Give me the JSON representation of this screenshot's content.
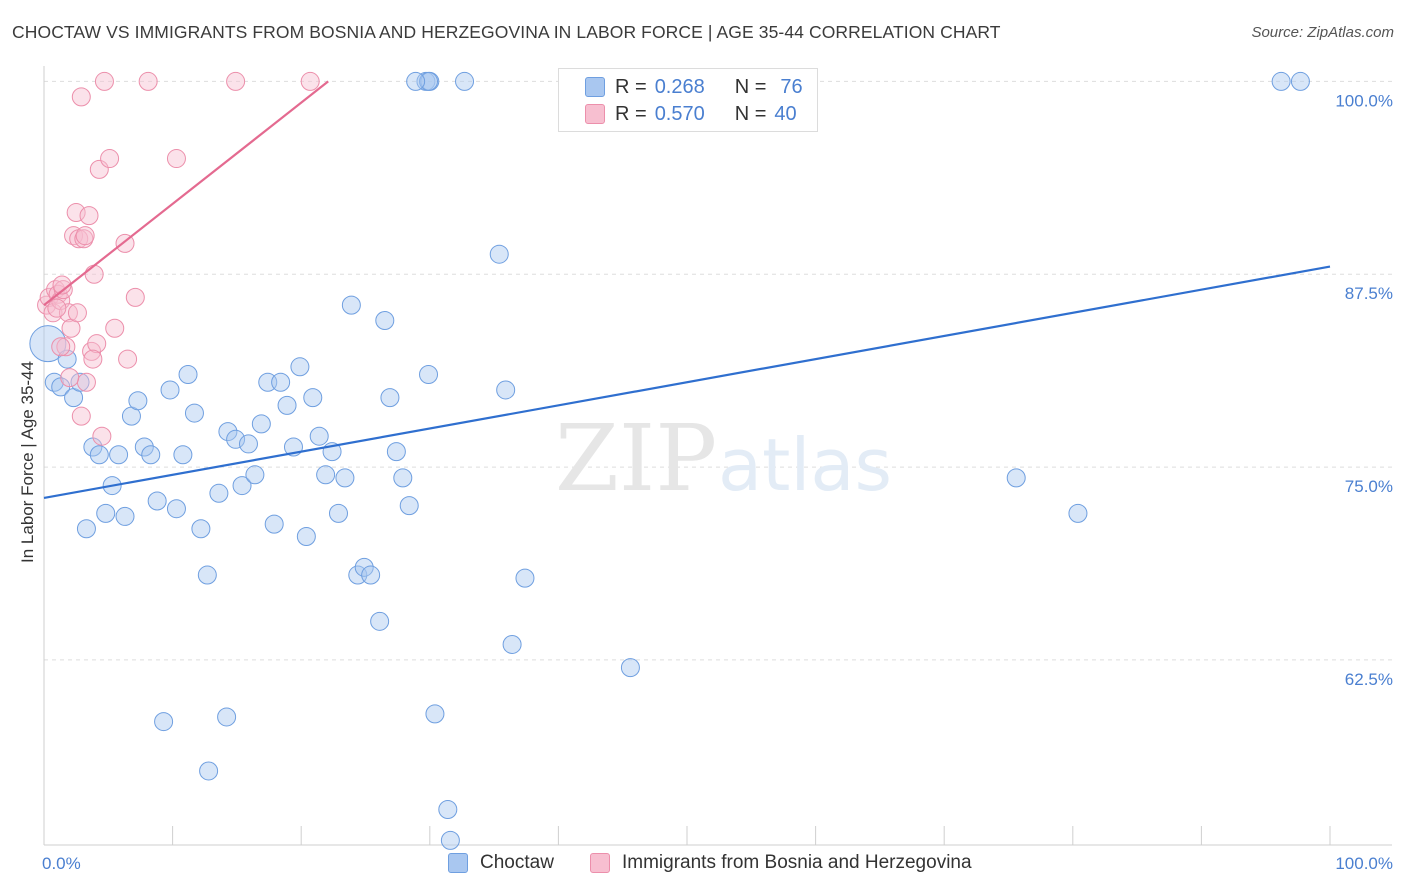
{
  "title": "CHOCTAW VS IMMIGRANTS FROM BOSNIA AND HERZEGOVINA IN LABOR FORCE | AGE 35-44 CORRELATION CHART",
  "source": "Source: ZipAtlas.com",
  "legend": {
    "r_label": "R =",
    "n_label": "N =",
    "series": [
      {
        "name": "Choctaw",
        "r": "0.268",
        "n": "76",
        "color": "#a9c7f0",
        "stroke": "#6f9fe0"
      },
      {
        "name": "Immigrants from Bosnia and Herzegovina",
        "r": "0.570",
        "n": "40",
        "color": "#f7bfd0",
        "stroke": "#ec8fab"
      }
    ]
  },
  "watermark": {
    "zip": "ZIP",
    "atlas": "atlas"
  },
  "chart_data": {
    "type": "scatter",
    "title": "CHOCTAW VS IMMIGRANTS FROM BOSNIA AND HERZEGOVINA IN LABOR FORCE | AGE 35-44 CORRELATION CHART",
    "xlabel": "",
    "ylabel": "In Labor Force | Age 35-44",
    "xlim": [
      0,
      100
    ],
    "ylim": [
      50.5,
      101
    ],
    "x_tick_labels": [
      "0.0%",
      "100.0%"
    ],
    "y_ticks": [
      62.5,
      75.0,
      87.5,
      100.0
    ],
    "y_tick_labels": [
      "62.5%",
      "75.0%",
      "87.5%",
      "100.0%"
    ],
    "grid": true,
    "series": [
      {
        "name": "Choctaw",
        "color": "#6f9fe0",
        "line_color": "#2f6fcf",
        "trend": {
          "x": [
            0,
            100
          ],
          "y": [
            73.0,
            88.0
          ]
        },
        "points": [
          [
            0.3,
            83.0
          ],
          [
            0.8,
            80.5
          ],
          [
            1.3,
            80.2
          ],
          [
            1.8,
            82.0
          ],
          [
            2.3,
            79.5
          ],
          [
            2.8,
            80.5
          ],
          [
            3.3,
            71.0
          ],
          [
            3.8,
            76.3
          ],
          [
            4.3,
            75.8
          ],
          [
            4.8,
            72.0
          ],
          [
            5.3,
            73.8
          ],
          [
            5.8,
            75.8
          ],
          [
            6.3,
            71.8
          ],
          [
            6.8,
            78.3
          ],
          [
            7.3,
            79.3
          ],
          [
            7.8,
            76.3
          ],
          [
            8.3,
            75.8
          ],
          [
            8.8,
            72.8
          ],
          [
            9.3,
            58.5
          ],
          [
            9.8,
            80.0
          ],
          [
            10.3,
            72.3
          ],
          [
            10.8,
            75.8
          ],
          [
            11.2,
            81.0
          ],
          [
            11.7,
            78.5
          ],
          [
            12.2,
            71.0
          ],
          [
            12.7,
            68.0
          ],
          [
            12.8,
            55.3
          ],
          [
            13.6,
            73.3
          ],
          [
            14.2,
            58.8
          ],
          [
            14.3,
            77.3
          ],
          [
            14.9,
            76.8
          ],
          [
            15.4,
            73.8
          ],
          [
            15.9,
            76.5
          ],
          [
            16.4,
            74.5
          ],
          [
            16.9,
            77.8
          ],
          [
            17.4,
            80.5
          ],
          [
            17.9,
            71.3
          ],
          [
            18.4,
            80.5
          ],
          [
            18.9,
            79.0
          ],
          [
            19.4,
            76.3
          ],
          [
            19.9,
            81.5
          ],
          [
            20.4,
            70.5
          ],
          [
            20.9,
            79.5
          ],
          [
            21.4,
            77.0
          ],
          [
            21.9,
            74.5
          ],
          [
            22.4,
            76.0
          ],
          [
            22.9,
            72.0
          ],
          [
            23.4,
            74.3
          ],
          [
            23.9,
            85.5
          ],
          [
            24.4,
            68.0
          ],
          [
            24.9,
            68.5
          ],
          [
            25.4,
            68.0
          ],
          [
            26.1,
            65.0
          ],
          [
            26.5,
            84.5
          ],
          [
            26.9,
            79.5
          ],
          [
            27.4,
            76.0
          ],
          [
            27.9,
            74.3
          ],
          [
            28.4,
            72.5
          ],
          [
            29.7,
            100.0
          ],
          [
            29.9,
            81.0
          ],
          [
            30.4,
            59.0
          ],
          [
            31.4,
            52.8
          ],
          [
            31.6,
            50.8
          ],
          [
            32.7,
            100.0
          ],
          [
            35.4,
            88.8
          ],
          [
            35.9,
            80.0
          ],
          [
            36.4,
            63.5
          ],
          [
            37.4,
            67.8
          ],
          [
            45.6,
            62.0
          ],
          [
            75.6,
            74.3
          ],
          [
            80.4,
            72.0
          ],
          [
            96.2,
            100.0
          ],
          [
            97.7,
            100.0
          ],
          [
            30.0,
            100.0
          ],
          [
            29.9,
            100.0
          ],
          [
            28.9,
            100.0
          ]
        ]
      },
      {
        "name": "Immigrants from Bosnia and Herzegovina",
        "color": "#ec8fab",
        "line_color": "#e46a90",
        "trend": {
          "x": [
            0,
            22.1
          ],
          "y": [
            85.5,
            100.0
          ]
        },
        "points": [
          [
            0.2,
            85.5
          ],
          [
            0.4,
            86.0
          ],
          [
            0.7,
            85.0
          ],
          [
            0.9,
            86.5
          ],
          [
            1.1,
            86.2
          ],
          [
            1.3,
            85.8
          ],
          [
            1.5,
            86.5
          ],
          [
            1.7,
            82.8
          ],
          [
            1.9,
            85.0
          ],
          [
            2.1,
            84.0
          ],
          [
            2.3,
            90.0
          ],
          [
            2.5,
            91.5
          ],
          [
            2.7,
            89.8
          ],
          [
            2.9,
            78.3
          ],
          [
            3.1,
            89.8
          ],
          [
            3.3,
            80.5
          ],
          [
            3.5,
            91.3
          ],
          [
            3.7,
            82.5
          ],
          [
            3.9,
            87.5
          ],
          [
            4.1,
            83.0
          ],
          [
            4.3,
            94.3
          ],
          [
            4.5,
            77.0
          ],
          [
            4.7,
            100.0
          ],
          [
            5.1,
            95.0
          ],
          [
            5.5,
            84.0
          ],
          [
            6.3,
            89.5
          ],
          [
            6.5,
            82.0
          ],
          [
            7.1,
            86.0
          ],
          [
            8.1,
            100.0
          ],
          [
            10.3,
            95.0
          ],
          [
            14.9,
            100.0
          ],
          [
            20.7,
            100.0
          ],
          [
            2.9,
            99.0
          ],
          [
            1.3,
            82.8
          ],
          [
            1.0,
            85.3
          ],
          [
            2.0,
            80.8
          ],
          [
            3.8,
            82.0
          ],
          [
            1.4,
            86.8
          ],
          [
            3.2,
            90.0
          ],
          [
            2.6,
            85.0
          ]
        ]
      }
    ]
  }
}
